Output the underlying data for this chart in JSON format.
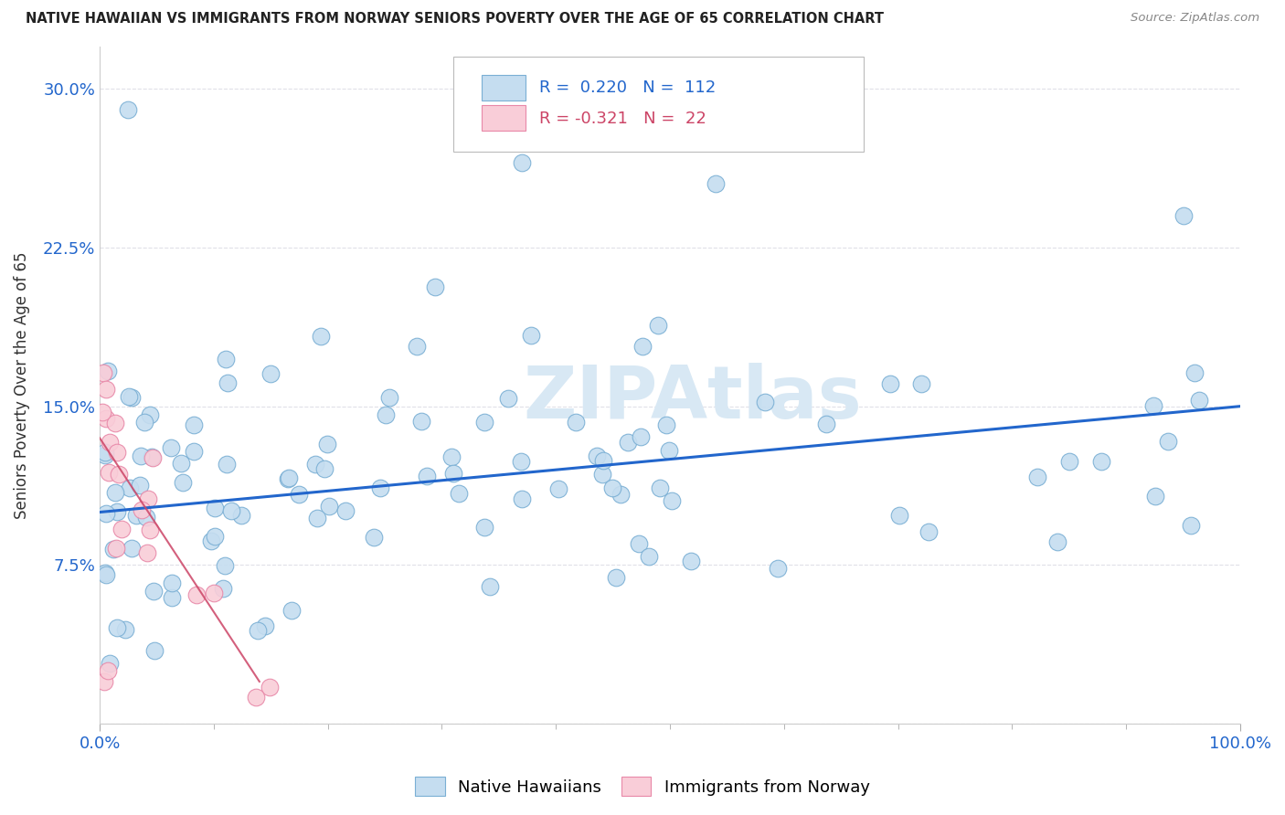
{
  "title": "NATIVE HAWAIIAN VS IMMIGRANTS FROM NORWAY SENIORS POVERTY OVER THE AGE OF 65 CORRELATION CHART",
  "source": "Source: ZipAtlas.com",
  "ylabel": "Seniors Poverty Over the Age of 65",
  "r_blue": 0.22,
  "n_blue": 112,
  "r_pink": -0.321,
  "n_pink": 22,
  "blue_color": "#c5ddf0",
  "blue_edge": "#7aafd4",
  "pink_color": "#f9cdd8",
  "pink_edge": "#e888a8",
  "blue_line_color": "#2266cc",
  "pink_line_color": "#cc4466",
  "watermark_color": "#d8e8f4",
  "ylim": [
    0,
    32
  ],
  "xlim": [
    0,
    100
  ],
  "yticks": [
    0,
    7.5,
    15.0,
    22.5,
    30.0
  ],
  "ytick_labels": [
    "",
    "7.5%",
    "15.0%",
    "22.5%",
    "30.0%"
  ],
  "xtick_labels": [
    "0.0%",
    "100.0%"
  ],
  "bg_color": "#ffffff",
  "grid_color": "#e0e0e8",
  "blue_trend_x0": 0,
  "blue_trend_y0": 10.0,
  "blue_trend_x1": 100,
  "blue_trend_y1": 15.0,
  "pink_trend_x0": 0,
  "pink_trend_y0": 13.5,
  "pink_trend_x1": 14,
  "pink_trend_y1": 2.0
}
